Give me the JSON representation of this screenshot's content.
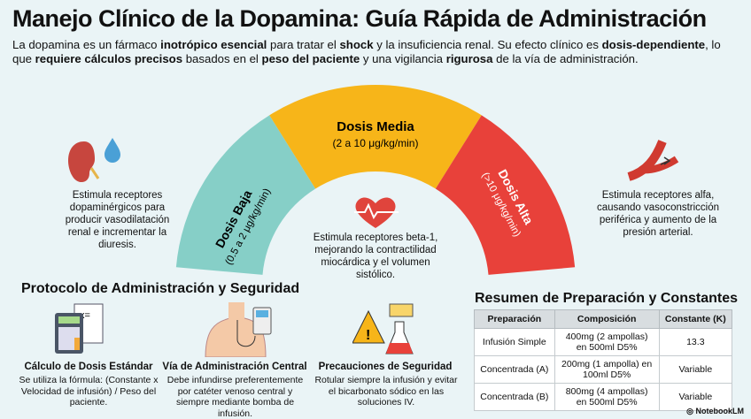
{
  "title": "Manejo Clínico de la Dopamina: Guía Rápida de Administración",
  "intro": [
    {
      "t": "La dopamina es un fármaco ",
      "b": false
    },
    {
      "t": "inotrópico esencial",
      "b": true
    },
    {
      "t": " para tratar el ",
      "b": false
    },
    {
      "t": "shock",
      "b": true
    },
    {
      "t": " y la insuficiencia renal. Su efecto clínico es ",
      "b": false
    },
    {
      "t": "dosis-dependiente",
      "b": true
    },
    {
      "t": ", lo que ",
      "b": false
    },
    {
      "t": "requiere cálculos precisos",
      "b": true
    },
    {
      "t": " basados en el ",
      "b": false
    },
    {
      "t": "peso del paciente",
      "b": true
    },
    {
      "t": " y una vigilancia ",
      "b": false
    },
    {
      "t": "rigurosa",
      "b": true
    },
    {
      "t": " de la vía de administración.",
      "b": false
    }
  ],
  "gauge": {
    "low": {
      "title": "Dosis Baja",
      "range": "(0.5 a 2 μg/kg/min)",
      "color": "#86cfc7",
      "effect": "Estimula receptores dopaminérgicos para producir vasodilatación renal e incrementar la diuresis."
    },
    "mid": {
      "title": "Dosis Media",
      "range": "(2 a 10 μg/kg/min)",
      "color": "#f7b519",
      "effect": "Estimula receptores beta-1, mejorando la contractilidad miocárdica y el volumen sistólico."
    },
    "high": {
      "title": "Dosis Alta",
      "range": "(>10 μg/kg/min)",
      "color": "#e8413a",
      "effect": "Estimula receptores alfa, causando vasoconstricción periférica y aumento de la presión arterial."
    }
  },
  "protocol": {
    "title": "Protocolo de Administración y Seguridad",
    "cards": [
      {
        "title": "Cálculo de Dosis Estándar",
        "text": "Se utiliza la fórmula: (Constante x Velocidad de infusión) / Peso del paciente."
      },
      {
        "title": "Vía de Administración Central",
        "text": "Debe infundirse preferentemente por catéter venoso central y siempre mediante bomba de infusión."
      },
      {
        "title": "Precauciones de Seguridad",
        "text": "Rotular siempre la infusión y evitar el bicarbonato sódico en las soluciones IV."
      }
    ]
  },
  "summary": {
    "title": "Resumen de Preparación y Constantes",
    "headers": [
      "Preparación",
      "Composición",
      "Constante (K)"
    ],
    "rows": [
      [
        "Infusión Simple",
        "400mg (2 ampollas) en 500ml D5%",
        "13.3"
      ],
      [
        "Concentrada (A)",
        "200mg (1 ampolla) en 100ml D5%",
        "Variable"
      ],
      [
        "Concentrada (B)",
        "800mg (4 ampollas) en 500ml D5%",
        "Variable"
      ]
    ]
  },
  "brand": "NotebookLM"
}
